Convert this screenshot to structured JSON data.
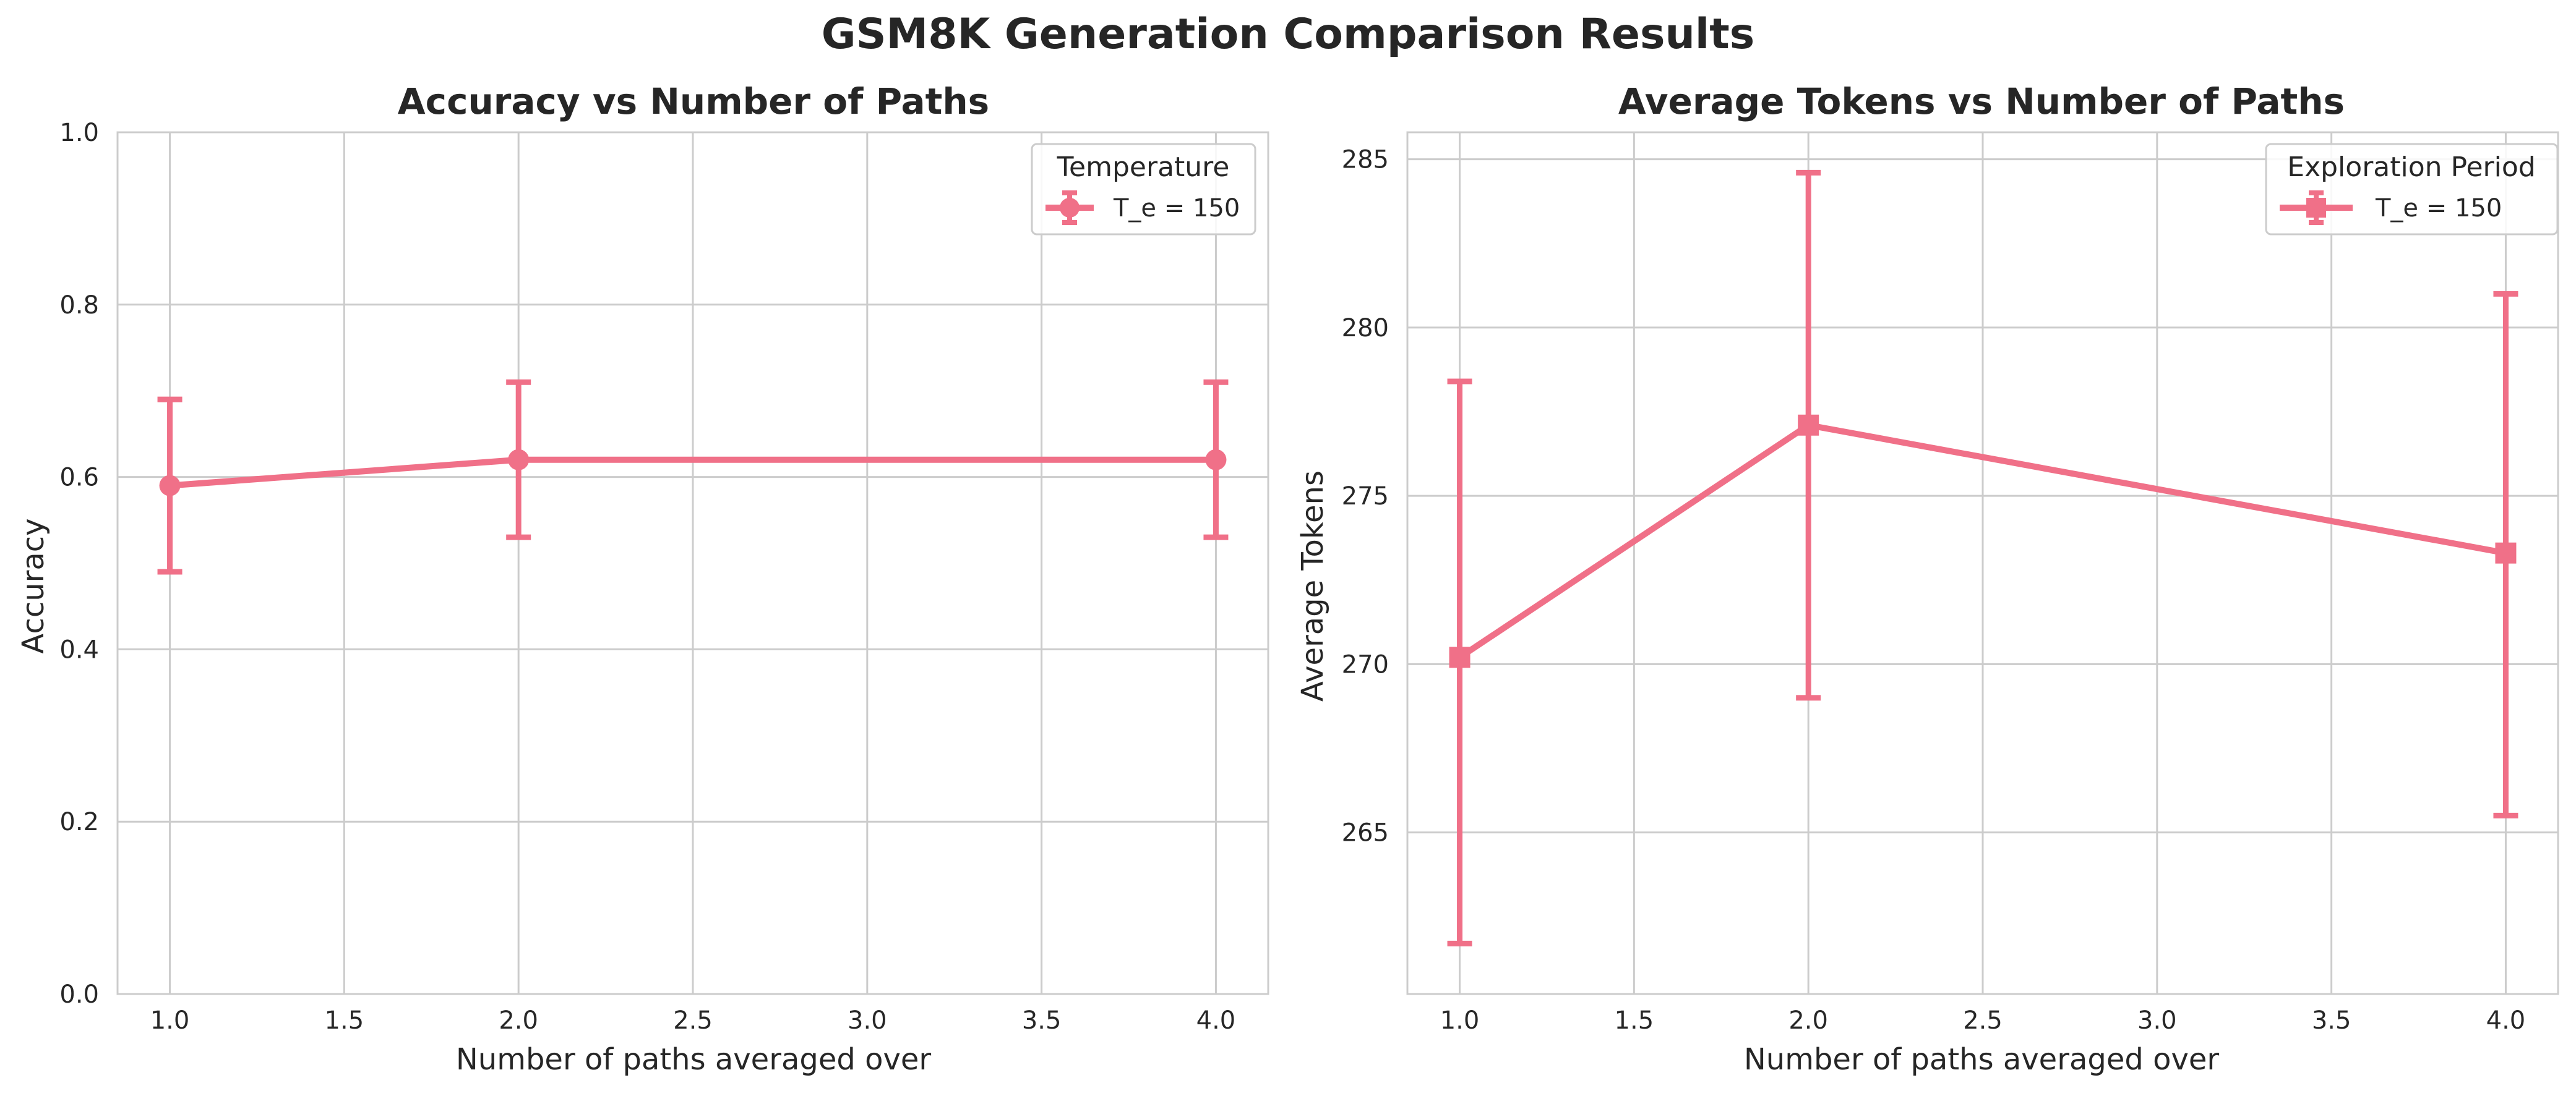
{
  "figure": {
    "suptitle": "GSM8K Generation Comparison Results"
  },
  "colors": {
    "series": "#f07088",
    "grid": "#cccccc",
    "spine": "#cccccc",
    "text": "#262626"
  },
  "chart_data": [
    {
      "type": "line",
      "title": "Accuracy vs Number of Paths",
      "xlabel": "Number of paths averaged over",
      "ylabel": "Accuracy",
      "xlim": [
        0.85,
        4.15
      ],
      "ylim": [
        0.0,
        1.0
      ],
      "xticks": [
        1.0,
        1.5,
        2.0,
        2.5,
        3.0,
        3.5,
        4.0
      ],
      "xtick_labels": [
        "1.0",
        "1.5",
        "2.0",
        "2.5",
        "3.0",
        "3.5",
        "4.0"
      ],
      "yticks": [
        0.0,
        0.2,
        0.4,
        0.6,
        0.8,
        1.0
      ],
      "ytick_labels": [
        "0.0",
        "0.2",
        "0.4",
        "0.6",
        "0.8",
        "1.0"
      ],
      "grid": true,
      "legend": {
        "title": "Temperature",
        "position": "top-right"
      },
      "series": [
        {
          "name": "T_e = 150",
          "marker": "circle",
          "x": [
            1.0,
            2.0,
            4.0
          ],
          "y": [
            0.59,
            0.62,
            0.62
          ],
          "yerr_low": [
            0.49,
            0.53,
            0.53
          ],
          "yerr_high": [
            0.69,
            0.71,
            0.71
          ]
        }
      ]
    },
    {
      "type": "line",
      "title": "Average Tokens vs Number of Paths",
      "xlabel": "Number of paths averaged over",
      "ylabel": "Average Tokens",
      "xlim": [
        0.85,
        4.15
      ],
      "ylim": [
        260.2,
        285.8
      ],
      "xticks": [
        1.0,
        1.5,
        2.0,
        2.5,
        3.0,
        3.5,
        4.0
      ],
      "xtick_labels": [
        "1.0",
        "1.5",
        "2.0",
        "2.5",
        "3.0",
        "3.5",
        "4.0"
      ],
      "yticks": [
        265,
        270,
        275,
        280,
        285
      ],
      "ytick_labels": [
        "265",
        "270",
        "275",
        "280",
        "285"
      ],
      "grid": true,
      "legend": {
        "title": "Exploration Period",
        "position": "top-right"
      },
      "series": [
        {
          "name": "T_e = 150",
          "marker": "square",
          "x": [
            1.0,
            2.0,
            4.0
          ],
          "y": [
            270.2,
            277.1,
            273.3
          ],
          "yerr_low": [
            261.7,
            269.0,
            265.5
          ],
          "yerr_high": [
            278.4,
            284.6,
            281.0
          ]
        }
      ]
    }
  ]
}
